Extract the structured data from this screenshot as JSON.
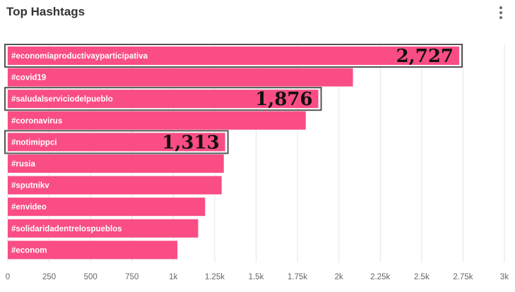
{
  "header": {
    "title": "Top Hashtags",
    "menu_icon": "more-vertical-icon"
  },
  "colors": {
    "bar": "#f94d84",
    "grid": "#e4e4e4",
    "highlight_border": "#555555"
  },
  "chart_data": {
    "type": "bar",
    "orientation": "horizontal",
    "title": "Top Hashtags",
    "categories": [
      "#economíaproductivayparticipativa",
      "#covid19",
      "#saludalserviciodelpueblo",
      "#coronavirus",
      "#notimippci",
      "#rusia",
      "#sputnikv",
      "#envideo",
      "#solidaridadentrelospueblos",
      "#econom"
    ],
    "values": [
      2727,
      2085,
      1876,
      1800,
      1313,
      1305,
      1292,
      1192,
      1150,
      1025
    ],
    "highlighted": [
      {
        "index": 0,
        "label": "2,727"
      },
      {
        "index": 2,
        "label": "1,876"
      },
      {
        "index": 4,
        "label": "1,313"
      }
    ],
    "xlim": [
      0,
      3000
    ],
    "xticks": [
      0,
      250,
      500,
      750,
      1000,
      1250,
      1500,
      1750,
      2000,
      2250,
      2500,
      2750,
      3000
    ],
    "xtick_labels": [
      "0",
      "250",
      "500",
      "750",
      "1k",
      "1.25k",
      "1.5k",
      "1.75k",
      "2k",
      "2.25k",
      "2.5k",
      "2.75k",
      "3k"
    ],
    "grid": true,
    "xlabel": "",
    "ylabel": ""
  }
}
